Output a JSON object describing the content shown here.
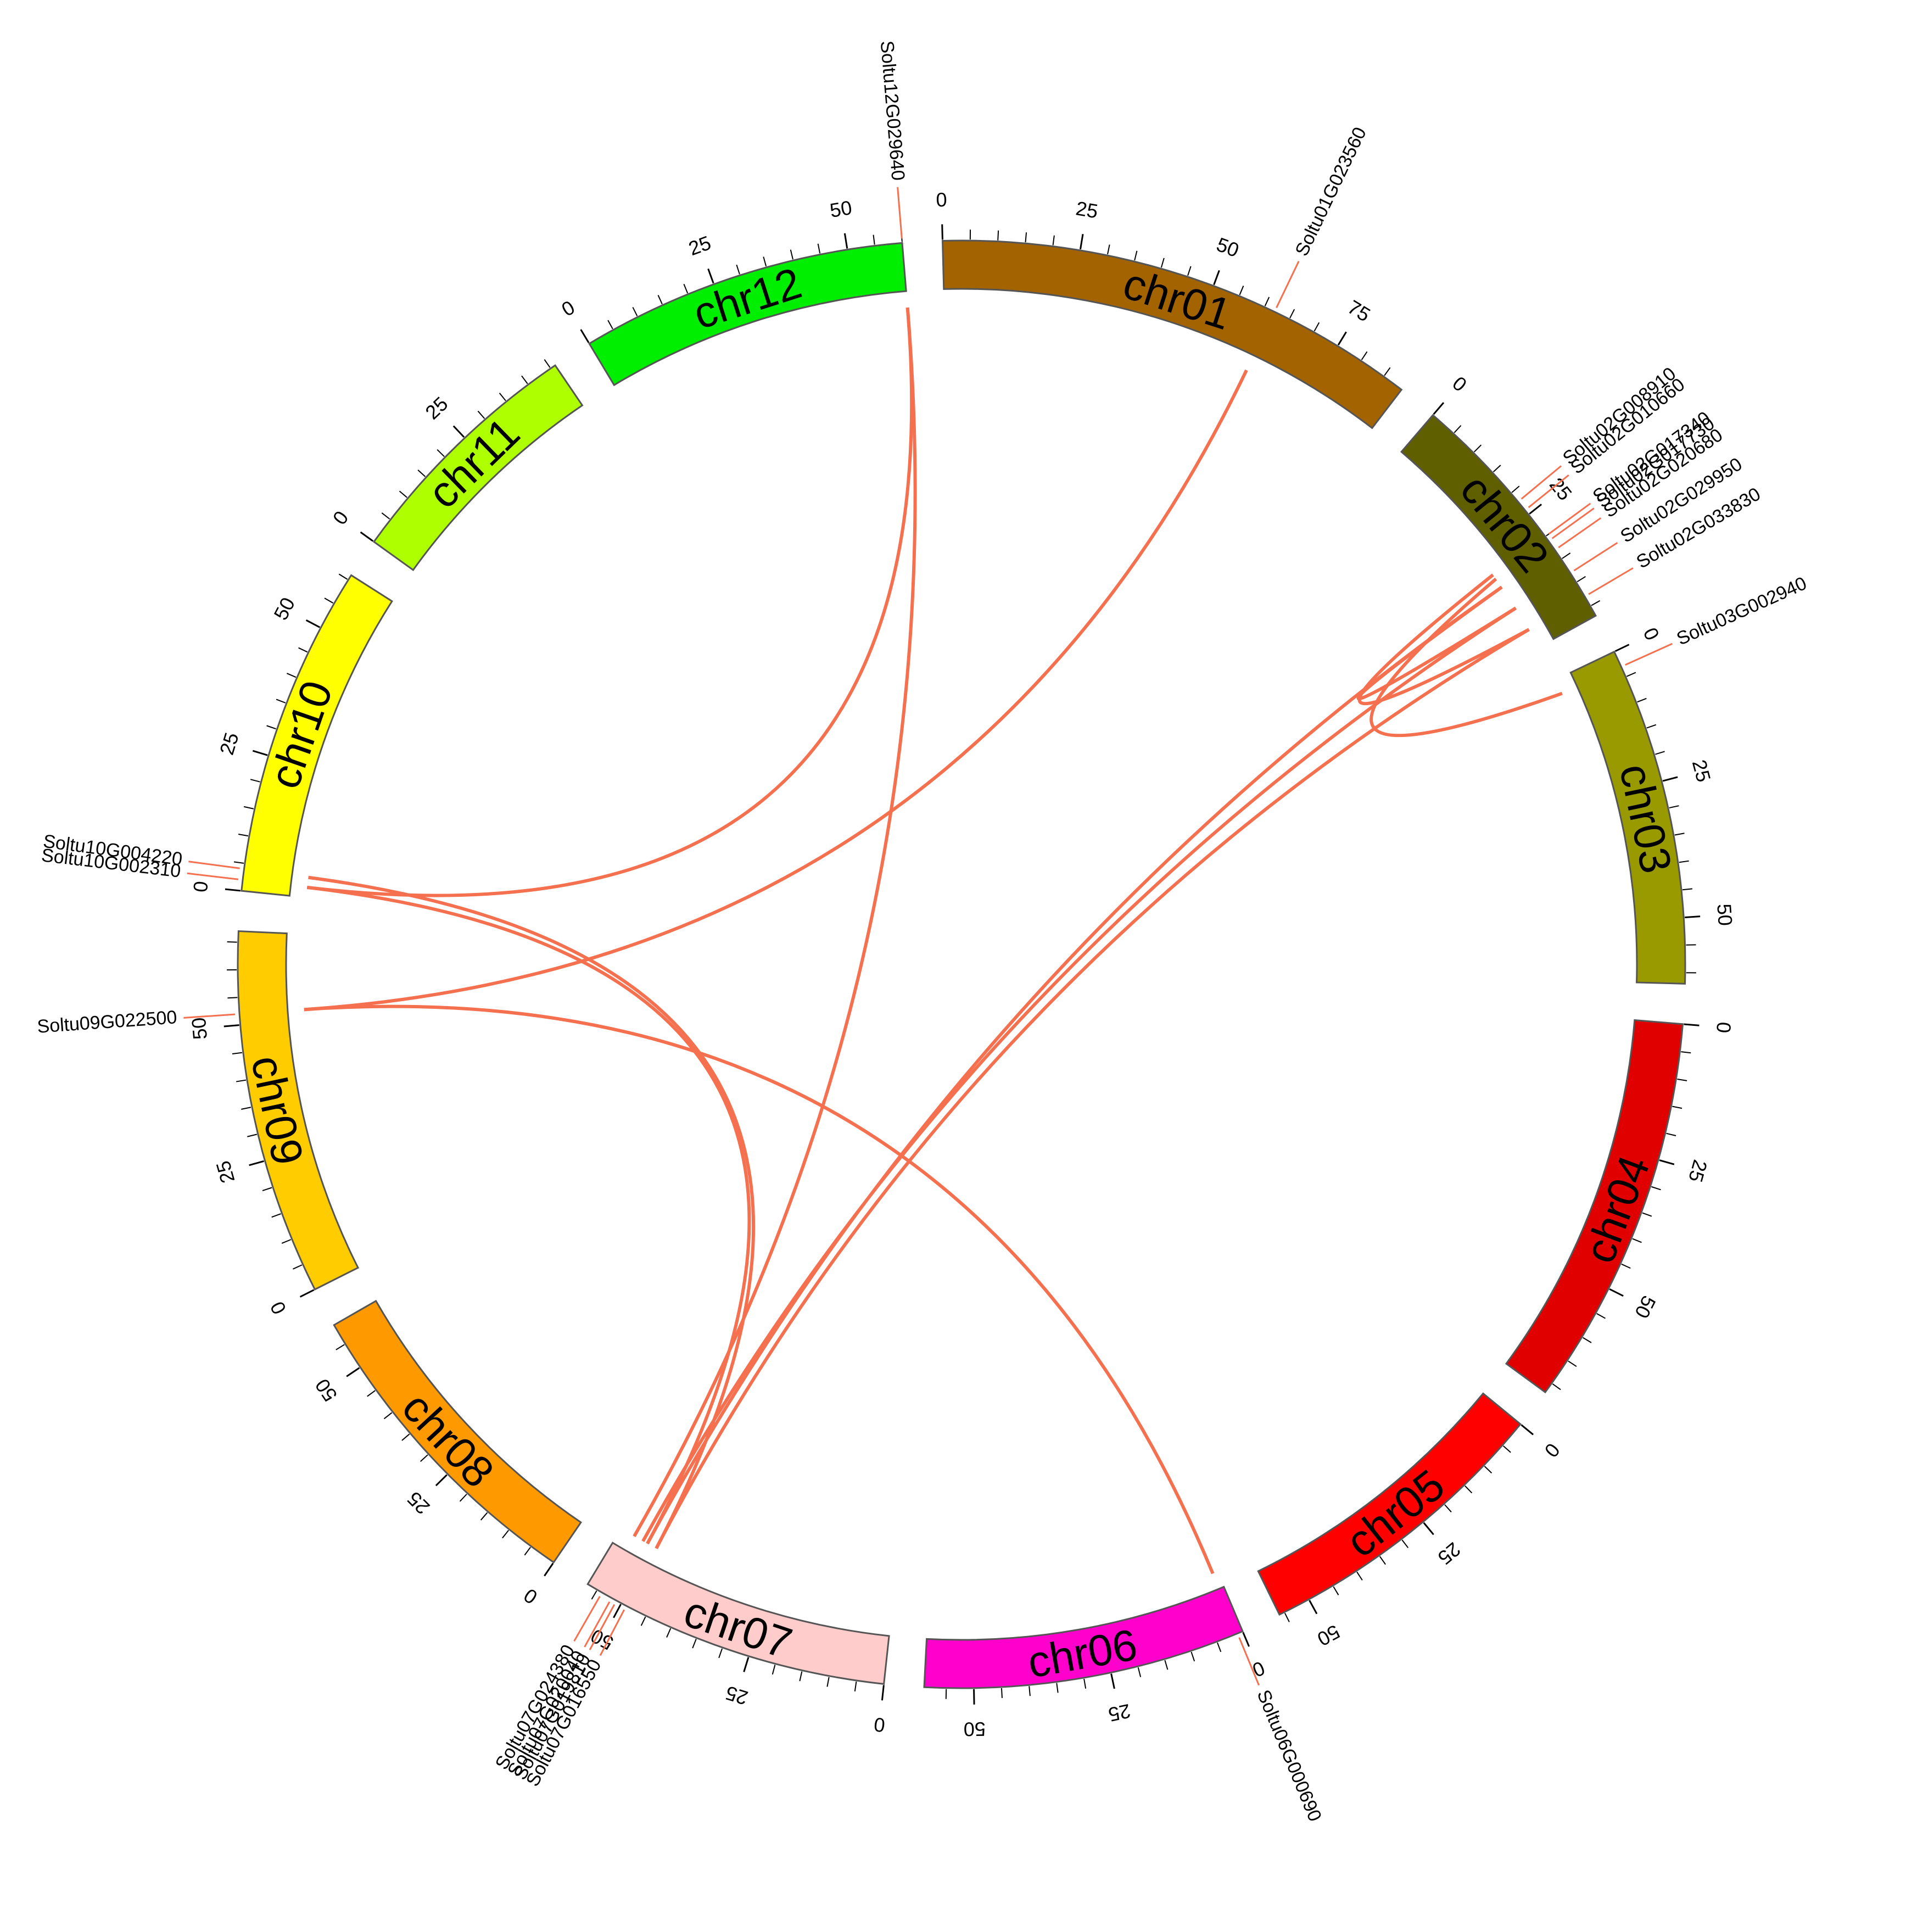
{
  "chart_data": {
    "type": "circos",
    "title": "",
    "chromosomes": [
      {
        "name": "chr01",
        "label": "chr01",
        "length": 89,
        "color": "#A36400",
        "ticks": [
          "0",
          "25",
          "50",
          "75"
        ]
      },
      {
        "name": "chr02",
        "label": "chr02",
        "length": 47,
        "color": "#5F5F00",
        "ticks": [
          "0",
          "25"
        ]
      },
      {
        "name": "chr03",
        "label": "chr03",
        "length": 62,
        "color": "#999900",
        "ticks": [
          "0",
          "25",
          "50"
        ]
      },
      {
        "name": "chr04",
        "label": "chr04",
        "length": 72,
        "color": "#E00000",
        "ticks": [
          "0",
          "25",
          "50"
        ]
      },
      {
        "name": "chr05",
        "label": "chr05",
        "length": 56,
        "color": "#FF0000",
        "ticks": [
          "0",
          "25",
          "50"
        ]
      },
      {
        "name": "chr06",
        "label": "chr06",
        "length": 59,
        "color": "#FF00CC",
        "ticks": [
          "0",
          "25",
          "50"
        ]
      },
      {
        "name": "chr07",
        "label": "chr07",
        "length": 57,
        "color": "#FFCCCC",
        "ticks": [
          "0",
          "25",
          "50"
        ]
      },
      {
        "name": "chr08",
        "label": "chr08",
        "length": 59,
        "color": "#FF9900",
        "ticks": [
          "0",
          "25",
          "50"
        ]
      },
      {
        "name": "chr09",
        "label": "chr09",
        "length": 67,
        "color": "#FFCC00",
        "ticks": [
          "0",
          "25",
          "50"
        ]
      },
      {
        "name": "chr10",
        "label": "chr10",
        "length": 61,
        "color": "#FFFF00",
        "ticks": [
          "0",
          "25",
          "50"
        ]
      },
      {
        "name": "chr11",
        "label": "chr11",
        "length": 46,
        "color": "#AEFF00",
        "ticks": [
          "0",
          "25"
        ]
      },
      {
        "name": "chr12",
        "label": "chr12",
        "length": 60,
        "color": "#00EE00",
        "ticks": [
          "0",
          "25",
          "50"
        ]
      }
    ],
    "genes": [
      {
        "id": "Soltu01G023560",
        "chr": "chr01",
        "pos": 62
      },
      {
        "id": "Soltu02G008910",
        "chr": "chr02",
        "pos": 22
      },
      {
        "id": "Soltu02G010660",
        "chr": "chr02",
        "pos": 24
      },
      {
        "id": "Soltu02G017340",
        "chr": "chr02",
        "pos": 30
      },
      {
        "id": "Soltu02G017730",
        "chr": "chr02",
        "pos": 31
      },
      {
        "id": "Soltu02G020680",
        "chr": "chr02",
        "pos": 33
      },
      {
        "id": "Soltu02G029950",
        "chr": "chr02",
        "pos": 38
      },
      {
        "id": "Soltu02G033830",
        "chr": "chr02",
        "pos": 43
      },
      {
        "id": "Soltu03G002940",
        "chr": "chr03",
        "pos": 3
      },
      {
        "id": "Soltu06G000690",
        "chr": "chr06",
        "pos": 1
      },
      {
        "id": "Soltu07G024380",
        "chr": "chr07",
        "pos": 54
      },
      {
        "id": "Soltu07G020040",
        "chr": "chr07",
        "pos": 52
      },
      {
        "id": "Soltu07G019810",
        "chr": "chr07",
        "pos": 51
      },
      {
        "id": "Soltu07G016550",
        "chr": "chr07",
        "pos": 49
      },
      {
        "id": "Soltu09G022500",
        "chr": "chr09",
        "pos": 52
      },
      {
        "id": "Soltu10G004220",
        "chr": "chr10",
        "pos": 4
      },
      {
        "id": "Soltu10G002310",
        "chr": "chr10",
        "pos": 2
      },
      {
        "id": "Soltu12G029640",
        "chr": "chr12",
        "pos": 60
      }
    ],
    "links": [
      [
        "Soltu12G029640",
        "Soltu10G002310"
      ],
      [
        "Soltu12G029640",
        "Soltu07G024380"
      ],
      [
        "Soltu01G023560",
        "Soltu09G022500"
      ],
      [
        "Soltu09G022500",
        "Soltu06G000690"
      ],
      [
        "Soltu10G004220",
        "Soltu07G016550"
      ],
      [
        "Soltu10G002310",
        "Soltu07G019810"
      ],
      [
        "Soltu02G017340",
        "Soltu02G033830"
      ],
      [
        "Soltu02G017730",
        "Soltu03G002940"
      ],
      [
        "Soltu02G020680",
        "Soltu02G029950"
      ],
      [
        "Soltu02G029950",
        "Soltu07G020040"
      ],
      [
        "Soltu02G033830",
        "Soltu07G016550"
      ],
      [
        "Soltu02G020680",
        "Soltu07G019810"
      ]
    ],
    "link_color": "#F4704F"
  }
}
